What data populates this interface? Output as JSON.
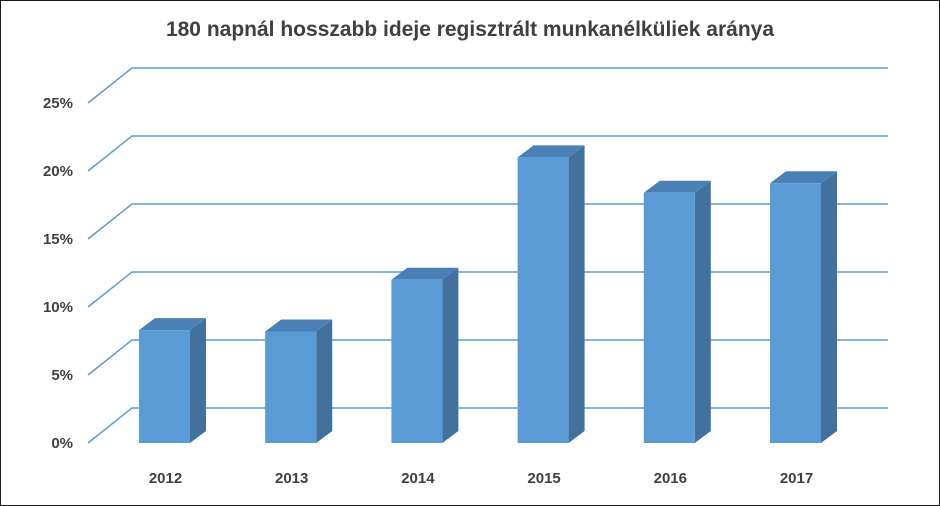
{
  "chart_data": {
    "type": "bar",
    "title": "180 napnál hosszabb ideje regisztrált munkanélküliek aránya",
    "categories": [
      "2012",
      "2013",
      "2014",
      "2015",
      "2016",
      "2017"
    ],
    "values": [
      8.3,
      8.2,
      12.0,
      21.0,
      18.4,
      19.1
    ],
    "ylim": [
      0,
      25
    ],
    "yticks": [
      "0%",
      "5%",
      "10%",
      "15%",
      "20%",
      "25%"
    ],
    "ytick_values": [
      0,
      5,
      10,
      15,
      20,
      25
    ],
    "grid": true,
    "style": "3d-column",
    "colors": {
      "bar_front": "#5b9bd5",
      "bar_side": "#41719c",
      "bar_top": "#4a80b6",
      "grid": "#5b9bd5"
    }
  }
}
